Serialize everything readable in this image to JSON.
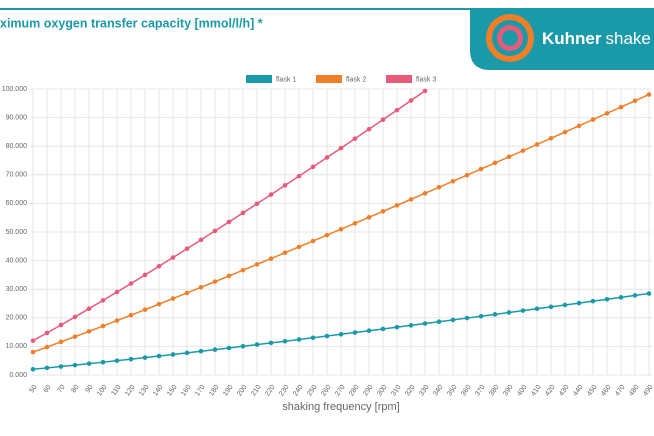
{
  "header": {
    "title": "ximum oxygen transfer capacity [mmol/l/h] *",
    "brand_bold": "Kuhner",
    "brand_light": "shake"
  },
  "chart_data": {
    "type": "line",
    "categories": [
      50,
      60,
      70,
      80,
      90,
      100,
      110,
      120,
      130,
      140,
      150,
      160,
      170,
      180,
      190,
      200,
      210,
      220,
      230,
      240,
      250,
      260,
      270,
      280,
      290,
      300,
      310,
      320,
      330,
      340,
      350,
      360,
      370,
      380,
      390,
      400,
      410,
      420,
      430,
      440,
      450,
      460,
      470,
      480,
      490
    ],
    "series": [
      {
        "name": "flask 1",
        "color": "#1a9aa8",
        "values": [
          2000,
          2470,
          2960,
          3460,
          3960,
          4480,
          5010,
          5540,
          6080,
          6630,
          7180,
          7750,
          8310,
          8880,
          9460,
          10040,
          10630,
          11220,
          11820,
          12420,
          13020,
          13630,
          14240,
          14860,
          15480,
          16100,
          16730,
          17360,
          17990,
          18630,
          19270,
          19910,
          20560,
          21210,
          21860,
          22510,
          23170,
          23830,
          24490,
          25150,
          25820,
          26490,
          27160,
          27830,
          28500
        ]
      },
      {
        "name": "flask 2",
        "color": "#f07f2a",
        "values": [
          8000,
          9770,
          11580,
          13400,
          15250,
          17120,
          19020,
          20920,
          22840,
          24780,
          26730,
          28690,
          30670,
          32650,
          34650,
          36660,
          38680,
          40710,
          42750,
          44800,
          46850,
          48910,
          50980,
          53050,
          55130,
          57220,
          59310,
          61410,
          63520,
          65630,
          67750,
          69880,
          72010,
          74150,
          76300,
          78450,
          80610,
          82770,
          84940,
          87120,
          89300,
          91490,
          93680,
          95880,
          98080
        ]
      },
      {
        "name": "flask 3",
        "color": "#e85a7a",
        "values": [
          12000,
          14720,
          17490,
          20310,
          23180,
          26080,
          29020,
          31990,
          34990,
          38020,
          41070,
          44160,
          47260,
          50380,
          53520,
          56690,
          59880,
          63080,
          66310,
          69540,
          72790,
          76060,
          79340,
          82640,
          85960,
          89280,
          92600,
          95960,
          99340,
          null,
          null,
          null,
          null,
          null,
          null,
          null,
          null,
          null,
          null,
          null,
          null,
          null,
          null,
          null,
          null
        ]
      }
    ],
    "ylim": [
      0,
      100000
    ],
    "yticks": [
      {
        "value": 0,
        "label": "0.000"
      },
      {
        "value": 10000,
        "label": "10.000"
      },
      {
        "value": 20000,
        "label": "20.000"
      },
      {
        "value": 30000,
        "label": "30.000"
      },
      {
        "value": 40000,
        "label": "40.000"
      },
      {
        "value": 50000,
        "label": "50.000"
      },
      {
        "value": 60000,
        "label": "60.000"
      },
      {
        "value": 70000,
        "label": "70.000"
      },
      {
        "value": 80000,
        "label": "80.000"
      },
      {
        "value": 90000,
        "label": "90.000"
      },
      {
        "value": 100000,
        "label": "100.000"
      }
    ],
    "x_label": "shaking frequency [rpm]",
    "grid": true,
    "legend": "top"
  }
}
